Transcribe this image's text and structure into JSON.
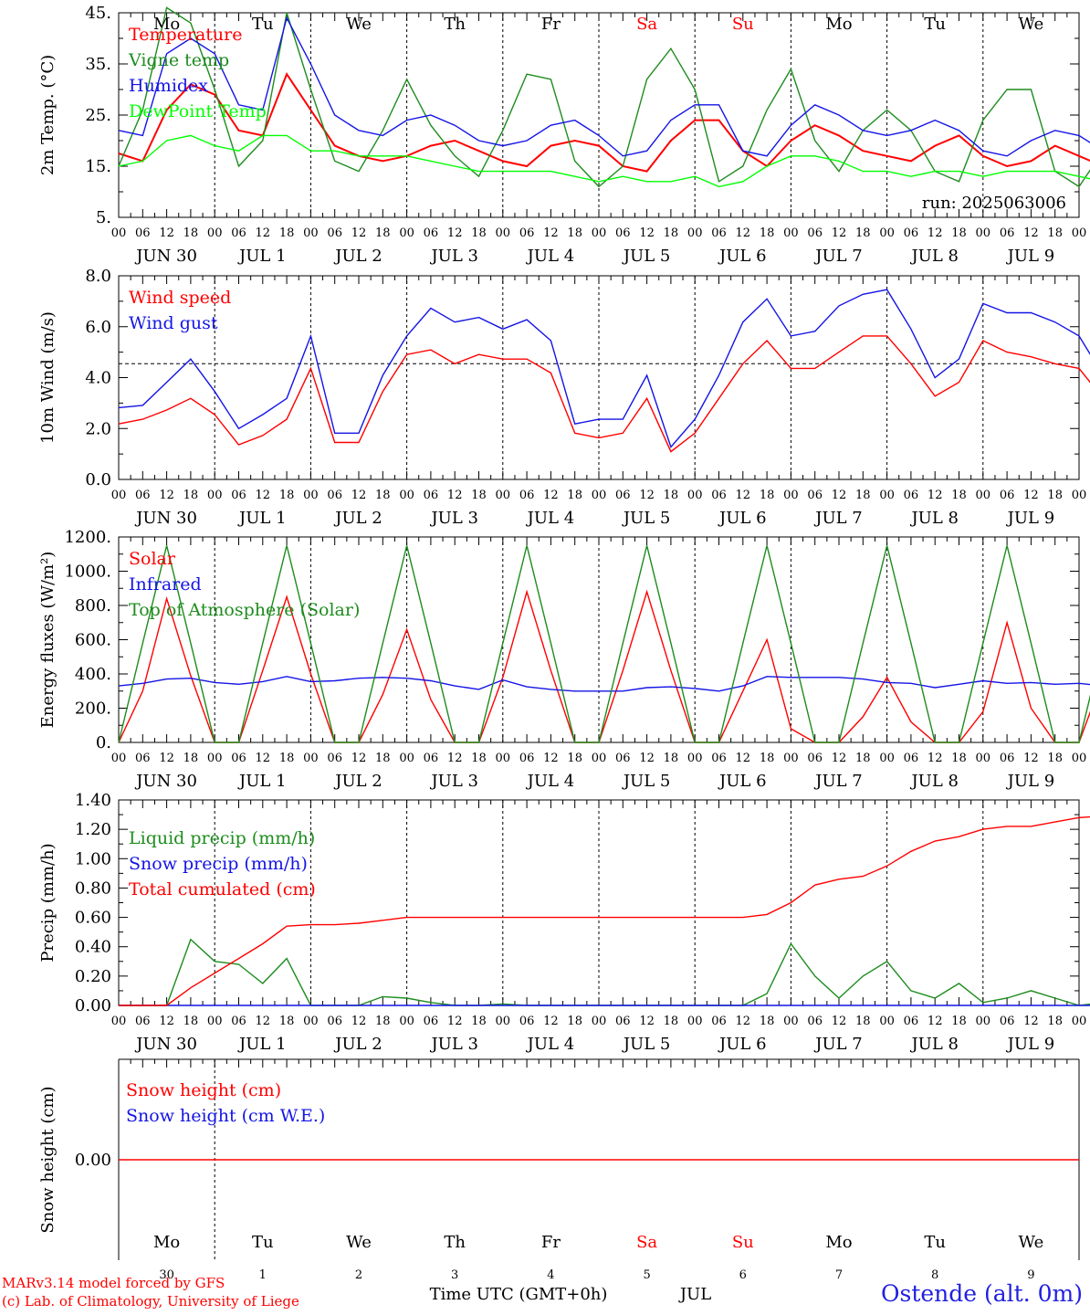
{
  "meteogram": {
    "days": [
      {
        "dow": "Mo",
        "date": "JUN 30",
        "num": "30",
        "weekend": false
      },
      {
        "dow": "Tu",
        "date": "JUL  1",
        "num": "1",
        "weekend": false
      },
      {
        "dow": "We",
        "date": "JUL  2",
        "num": "2",
        "weekend": false
      },
      {
        "dow": "Th",
        "date": "JUL  3",
        "num": "3",
        "weekend": false
      },
      {
        "dow": "Fr",
        "date": "JUL  4",
        "num": "4",
        "weekend": false
      },
      {
        "dow": "Sa",
        "date": "JUL  5",
        "num": "5",
        "weekend": true
      },
      {
        "dow": "Su",
        "date": "JUL  6",
        "num": "6",
        "weekend": true
      },
      {
        "dow": "Mo",
        "date": "JUL  7",
        "num": "7",
        "weekend": false
      },
      {
        "dow": "Tu",
        "date": "JUL  8",
        "num": "8",
        "weekend": false
      },
      {
        "dow": "We",
        "date": "JUL  9",
        "num": "9",
        "weekend": false
      }
    ],
    "hour_ticks": [
      "00",
      "06",
      "12",
      "18"
    ],
    "final_hour": "00",
    "x_title": "Time UTC (GMT+0h)",
    "month_label": "JUL",
    "run_label": "run: 2025063006",
    "credit_line1": "MARv3.14 model forced by GFS",
    "credit_line2": "(c) Lab. of Climatology, University of Liege",
    "station": "Ostende (alt. 0m)",
    "colors": {
      "red": "#ff0000",
      "green": "#1e8c1e",
      "blue": "#1414e6",
      "lightgreen": "#00ff00",
      "weekend": "#ff0000"
    }
  },
  "chart_data": [
    {
      "type": "line",
      "ylabel": "2m Temp. (°C)",
      "ylim": [
        5,
        45
      ],
      "yticks": [
        "5.",
        "15.",
        "25.",
        "35.",
        "45."
      ],
      "grid": false,
      "legend": "top-left",
      "x": "hours since JUN 30 00 UTC (every 6 h)",
      "series": [
        {
          "name": "Temperature",
          "color": "red",
          "values": [
            17.5,
            16,
            26,
            31,
            29,
            22,
            21,
            33,
            26,
            19,
            17,
            16,
            17,
            19,
            20,
            18,
            16,
            15,
            19,
            20,
            19,
            15,
            14,
            20,
            24,
            24,
            18,
            15,
            20,
            23,
            21,
            18,
            17,
            16,
            19,
            21,
            17,
            15,
            16,
            19,
            17,
            15,
            14,
            18,
            21,
            17,
            16,
            15,
            18,
            18,
            16
          ]
        },
        {
          "name": "Vigne temp",
          "color": "green",
          "values": [
            15,
            26,
            46,
            43,
            30,
            15,
            20,
            45,
            30,
            16,
            14,
            22,
            32,
            23,
            17,
            13,
            22,
            33,
            32,
            16,
            11,
            15,
            32,
            38,
            30,
            12,
            15,
            26,
            34,
            20,
            14,
            22,
            26,
            22,
            14,
            12,
            24,
            30,
            30,
            14,
            11,
            18,
            32,
            33,
            15,
            13,
            18,
            32,
            30,
            14,
            10
          ]
        },
        {
          "name": "Humidex",
          "color": "blue",
          "values": [
            22,
            21,
            37,
            40,
            37,
            27,
            26,
            44,
            35,
            25,
            22,
            21,
            24,
            25,
            23,
            20,
            19,
            20,
            23,
            24,
            21,
            17,
            18,
            24,
            27,
            27,
            18,
            17,
            23,
            27,
            25,
            22,
            21,
            22,
            24,
            22,
            18,
            17,
            20,
            22,
            21,
            18,
            16,
            20,
            24,
            20,
            19,
            19,
            22,
            22,
            17
          ]
        },
        {
          "name": "DewPoint Temp",
          "color": "lightgreen",
          "values": [
            15,
            16,
            20,
            21,
            19,
            18,
            21,
            21,
            18,
            18,
            17,
            17,
            17,
            16,
            15,
            14,
            14,
            14,
            14,
            13,
            12,
            13,
            12,
            12,
            13,
            11,
            12,
            15,
            17,
            17,
            16,
            14,
            14,
            13,
            14,
            14,
            13,
            14,
            14,
            14,
            13,
            12,
            12,
            12,
            11,
            12,
            12,
            13,
            13,
            12,
            11
          ]
        }
      ]
    },
    {
      "type": "line",
      "ylabel": "10m Wind (m/s)",
      "ylim": [
        0,
        8.8
      ],
      "yticks": [
        "0.0",
        "2.0",
        "4.0",
        "6.0",
        "8.0"
      ],
      "reference_line": 5.0,
      "legend": "top-left",
      "x": "hours since JUN 30 00 UTC (every 6 h)",
      "series": [
        {
          "name": "Wind speed",
          "color": "red",
          "values": [
            2.4,
            2.6,
            3.0,
            3.5,
            2.8,
            1.5,
            1.9,
            2.6,
            4.8,
            1.6,
            1.6,
            3.8,
            5.4,
            5.6,
            5.0,
            5.4,
            5.2,
            5.2,
            4.6,
            2.0,
            1.8,
            2.0,
            3.5,
            1.2,
            2.0,
            3.5,
            5.0,
            6.0,
            4.8,
            4.8,
            5.5,
            6.2,
            6.2,
            5.0,
            3.6,
            4.2,
            6.0,
            5.5,
            5.3,
            5.0,
            4.8,
            3.5,
            3.5,
            4.5,
            5.0,
            4.5,
            4.7,
            3.8,
            3.4,
            3.0,
            1.5
          ]
        },
        {
          "name": "Wind gust",
          "color": "blue",
          "values": [
            3.1,
            3.2,
            4.2,
            5.2,
            3.8,
            2.2,
            2.8,
            3.5,
            6.2,
            2.0,
            2.0,
            4.5,
            6.2,
            7.4,
            6.8,
            7.0,
            6.5,
            6.9,
            6.0,
            2.4,
            2.6,
            2.6,
            4.5,
            1.4,
            2.6,
            4.5,
            6.8,
            7.8,
            6.2,
            6.4,
            7.5,
            8.0,
            8.2,
            6.5,
            4.4,
            5.2,
            7.6,
            7.2,
            7.2,
            6.8,
            6.2,
            4.5,
            4.4,
            5.2,
            6.8,
            5.2,
            6.0,
            5.0,
            4.6,
            3.8,
            2.0
          ]
        }
      ]
    },
    {
      "type": "line",
      "ylabel": "Energy fluxes (W/m²)",
      "ylim": [
        0,
        1200
      ],
      "yticks": [
        "0.",
        "200.",
        "400.",
        "600.",
        "800.",
        "1000.",
        "1200."
      ],
      "legend": "top-left",
      "x": "hours since JUN 30 00 UTC (every 6 h)",
      "series": [
        {
          "name": "Solar",
          "color": "red",
          "values": [
            0,
            300,
            840,
            390,
            0,
            0,
            420,
            850,
            400,
            0,
            0,
            280,
            660,
            250,
            0,
            0,
            380,
            880,
            420,
            0,
            0,
            420,
            880,
            420,
            0,
            0,
            300,
            600,
            80,
            0,
            0,
            150,
            380,
            120,
            0,
            0,
            180,
            700,
            200,
            0,
            0,
            380,
            880,
            420,
            0,
            0,
            300,
            830,
            120,
            0,
            0
          ]
        },
        {
          "name": "Infrared",
          "color": "blue",
          "values": [
            330,
            345,
            370,
            375,
            350,
            340,
            355,
            385,
            355,
            360,
            375,
            380,
            375,
            360,
            330,
            310,
            365,
            325,
            310,
            300,
            300,
            300,
            320,
            325,
            315,
            300,
            330,
            385,
            380,
            380,
            380,
            370,
            350,
            345,
            320,
            340,
            360,
            345,
            350,
            340,
            345,
            330,
            330,
            315,
            330,
            310,
            320,
            360,
            365,
            310,
            305
          ]
        },
        {
          "name": "Top of Atmosphere (Solar)",
          "color": "green",
          "values": [
            0,
            580,
            1150,
            580,
            0,
            0,
            580,
            1150,
            580,
            0,
            0,
            580,
            1150,
            580,
            0,
            0,
            580,
            1150,
            580,
            0,
            0,
            580,
            1150,
            580,
            0,
            0,
            580,
            1150,
            580,
            0,
            0,
            580,
            1150,
            580,
            0,
            0,
            580,
            1150,
            580,
            0,
            0,
            580,
            1150,
            580,
            0,
            0,
            580,
            1150,
            580,
            0,
            0
          ]
        }
      ]
    },
    {
      "type": "line",
      "ylabel": "Precip (mm/h)",
      "ylim": [
        0,
        1.4
      ],
      "yticks": [
        "0.00",
        "0.20",
        "0.40",
        "0.60",
        "0.80",
        "1.00",
        "1.20",
        "1.40"
      ],
      "legend": "top-left",
      "x": "hours since JUN 30 00 UTC (every 6 h)",
      "series": [
        {
          "name": "Liquid precip (mm/h)",
          "color": "green",
          "values": [
            0,
            0,
            0,
            0.45,
            0.3,
            0.28,
            0.15,
            0.32,
            0,
            0,
            0,
            0.06,
            0.05,
            0.02,
            0,
            0,
            0.01,
            0,
            0,
            0,
            0,
            0,
            0,
            0,
            0,
            0,
            0,
            0.08,
            0.42,
            0.2,
            0.05,
            0.2,
            0.3,
            0.1,
            0.05,
            0.15,
            0.02,
            0.05,
            0.1,
            0.05,
            0,
            0.02,
            0,
            0,
            0,
            0,
            0,
            0.1,
            0.05,
            0,
            0
          ]
        },
        {
          "name": "Snow precip (mm/h)",
          "color": "blue",
          "values": [
            0,
            0,
            0,
            0,
            0,
            0,
            0,
            0,
            0,
            0,
            0,
            0,
            0,
            0,
            0,
            0,
            0,
            0,
            0,
            0,
            0,
            0,
            0,
            0,
            0,
            0,
            0,
            0,
            0,
            0,
            0,
            0,
            0,
            0,
            0,
            0,
            0,
            0,
            0,
            0,
            0,
            0,
            0,
            0,
            0,
            0,
            0,
            0,
            0,
            0,
            0
          ]
        },
        {
          "name": "Total cumulated (cm)",
          "color": "red",
          "values": [
            0,
            0,
            0,
            0.12,
            0.22,
            0.32,
            0.42,
            0.54,
            0.55,
            0.55,
            0.56,
            0.58,
            0.6,
            0.6,
            0.6,
            0.6,
            0.6,
            0.6,
            0.6,
            0.6,
            0.6,
            0.6,
            0.6,
            0.6,
            0.6,
            0.6,
            0.6,
            0.62,
            0.7,
            0.82,
            0.86,
            0.88,
            0.95,
            1.05,
            1.12,
            1.15,
            1.2,
            1.22,
            1.22,
            1.25,
            1.28,
            1.29,
            1.29,
            1.29,
            1.29,
            1.29,
            1.29,
            1.3,
            1.34,
            1.34,
            1.34
          ]
        }
      ]
    },
    {
      "type": "line",
      "ylabel": "Snow height (cm)",
      "ylim": [
        -1,
        1
      ],
      "yticks": [
        "0.00"
      ],
      "legend": "top-left",
      "series": [
        {
          "name": "Snow height (cm)",
          "color": "red",
          "values": [
            0,
            0
          ]
        },
        {
          "name": "Snow height (cm W.E.)",
          "color": "blue",
          "values": []
        }
      ]
    }
  ]
}
